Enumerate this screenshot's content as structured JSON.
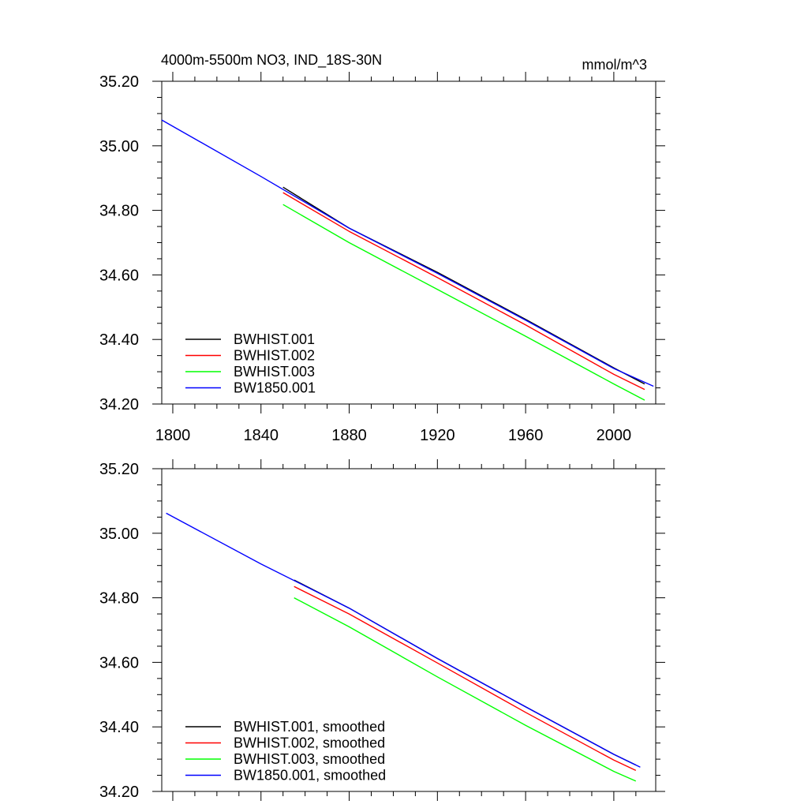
{
  "figure": {
    "title": "4000m-5500m NO3, IND_18S-30N",
    "units": "mmol/m^3"
  },
  "chart_data": [
    {
      "type": "line",
      "title": "4000m-5500m NO3, IND_18S-30N",
      "units": "mmol/m^3",
      "xlabel": "",
      "ylabel": "",
      "xlim": [
        1795,
        2019
      ],
      "ylim": [
        34.2,
        35.2
      ],
      "xticks": [
        1800,
        1840,
        1880,
        1920,
        1960,
        2000
      ],
      "xtick_labels": [
        "1800",
        "1840",
        "1880",
        "1920",
        "1960",
        "2000"
      ],
      "yticks": [
        34.2,
        34.4,
        34.6,
        34.8,
        35.0,
        35.2
      ],
      "ytick_labels": [
        "34.20",
        "34.40",
        "34.60",
        "34.80",
        "35.00",
        "35.20"
      ],
      "legend_position": "bottom-left",
      "series": [
        {
          "name": "BWHIST.001",
          "color": "#000000",
          "x": [
            1850,
            1880,
            1920,
            1960,
            2000,
            2014
          ],
          "y": [
            34.872,
            34.745,
            34.608,
            34.462,
            34.312,
            34.262
          ]
        },
        {
          "name": "BWHIST.002",
          "color": "#ff0000",
          "x": [
            1850,
            1880,
            1920,
            1960,
            2000,
            2014
          ],
          "y": [
            34.855,
            34.735,
            34.592,
            34.445,
            34.292,
            34.245
          ]
        },
        {
          "name": "BWHIST.003",
          "color": "#00ff00",
          "x": [
            1850,
            1880,
            1920,
            1960,
            2000,
            2014
          ],
          "y": [
            34.818,
            34.7,
            34.555,
            34.41,
            34.262,
            34.212
          ]
        },
        {
          "name": "BW1850.001",
          "color": "#0000ff",
          "x": [
            1795,
            1840,
            1880,
            1920,
            1960,
            2000,
            2018
          ],
          "y": [
            35.08,
            34.905,
            34.745,
            34.605,
            34.46,
            34.31,
            34.255
          ]
        }
      ]
    },
    {
      "type": "line",
      "title": "",
      "xlabel": "",
      "ylabel": "",
      "xlim": [
        1795,
        2019
      ],
      "ylim": [
        34.2,
        35.2
      ],
      "xticks": [
        1800,
        1840,
        1880,
        1920,
        1960,
        2000
      ],
      "yticks": [
        34.2,
        34.4,
        34.6,
        34.8,
        35.0,
        35.2
      ],
      "ytick_labels": [
        "34.20",
        "34.40",
        "34.60",
        "34.80",
        "35.00",
        "35.20"
      ],
      "legend_position": "bottom-left",
      "series": [
        {
          "name": "BWHIST.001, smoothed",
          "color": "#000000",
          "x": [
            1855,
            1880,
            1920,
            1960,
            2000,
            2010
          ],
          "y": [
            34.855,
            34.768,
            34.612,
            34.462,
            34.315,
            34.282
          ]
        },
        {
          "name": "BWHIST.002, smoothed",
          "color": "#ff0000",
          "x": [
            1855,
            1880,
            1920,
            1960,
            2000,
            2010
          ],
          "y": [
            34.835,
            34.75,
            34.598,
            34.445,
            34.297,
            34.265
          ]
        },
        {
          "name": "BWHIST.003, smoothed",
          "color": "#00ff00",
          "x": [
            1855,
            1880,
            1920,
            1960,
            2000,
            2010
          ],
          "y": [
            34.8,
            34.71,
            34.555,
            34.405,
            34.262,
            34.232
          ]
        },
        {
          "name": "BW1850.001, smoothed",
          "color": "#0000ff",
          "x": [
            1797,
            1840,
            1880,
            1920,
            1960,
            2000,
            2012
          ],
          "y": [
            35.062,
            34.905,
            34.768,
            34.612,
            34.462,
            34.315,
            34.275
          ]
        }
      ]
    }
  ]
}
